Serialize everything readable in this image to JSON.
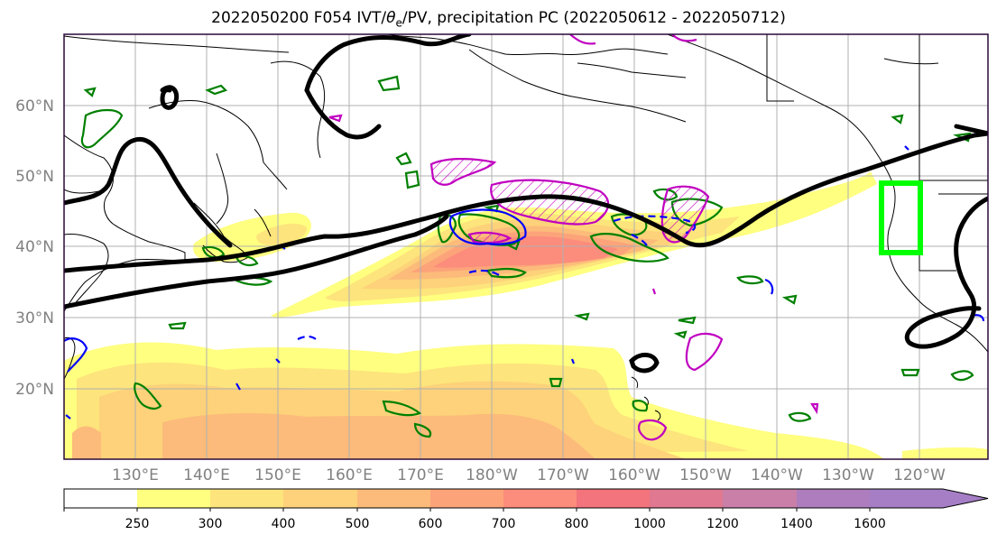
{
  "title": {
    "text_prefix": "2022050200 F054 IVT/",
    "theta": "θ",
    "sub": "e",
    "text_suffix": "/PV, precipitation PC (2022050612 - 2022050712)"
  },
  "map": {
    "lat_labels": [
      "60°N",
      "50°N",
      "40°N",
      "30°N",
      "20°N"
    ],
    "lon_labels": [
      "130°E",
      "140°E",
      "150°E",
      "160°E",
      "170°E",
      "180°W",
      "170°W",
      "160°W",
      "150°W",
      "140°W",
      "130°W",
      "120°W"
    ],
    "colors": {
      "jet_contour": "#000000",
      "pv_positive": "#c000c0",
      "pv_negative": "#0000ff",
      "theta_e": "#008000",
      "target_box": "#00ff00",
      "coastline": "#000000",
      "grid": "#b0b0b0",
      "frame": "#2a0a3a"
    }
  },
  "colorbar": {
    "ticks": [
      "250",
      "300",
      "400",
      "500",
      "600",
      "700",
      "800",
      "1000",
      "1200",
      "1400",
      "1600"
    ],
    "colors": [
      "#ffff80",
      "#fde47c",
      "#fdd27a",
      "#fcbb7a",
      "#fca37a",
      "#fc8c7c",
      "#f3747c",
      "#df7890",
      "#c97fa7",
      "#ae7dbd"
    ]
  }
}
